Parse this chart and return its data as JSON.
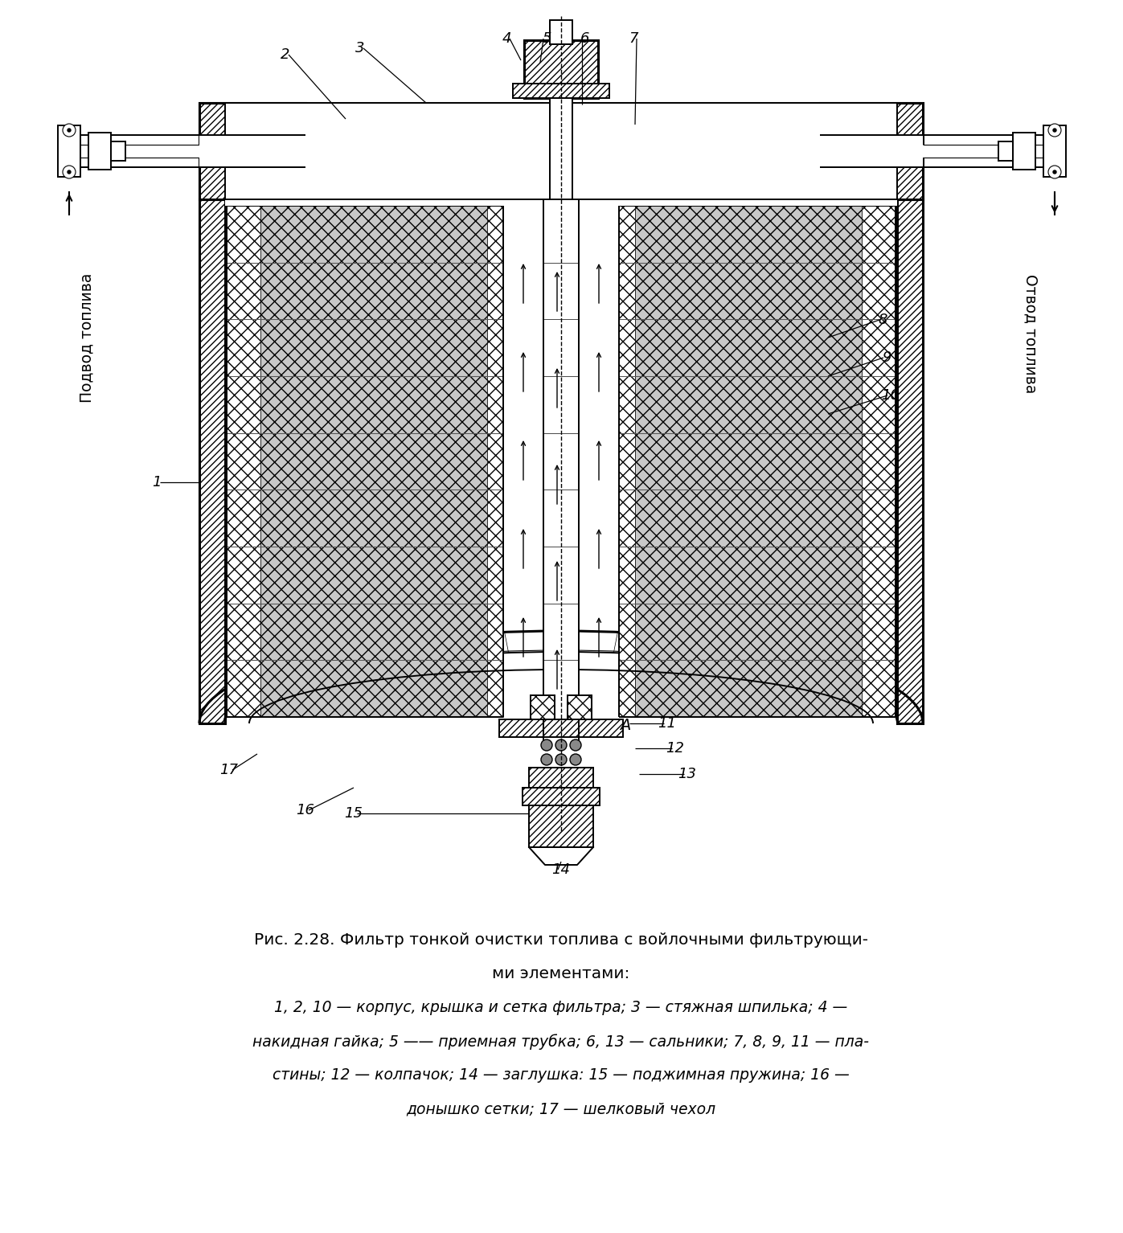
{
  "fig_width": 13.97,
  "fig_height": 15.34,
  "bg_color": "#ffffff",
  "caption_line1": "Рис. 2.28. Фильтр тонкой очистки топлива с войлочными фильтрующи-",
  "caption_line2": "ми элементами:",
  "caption_line3": "1, 2, 10 — корпус, крышка и сетка фильтра; 3 — стяжная шпилька; 4 —",
  "caption_line4": "накидная гайка; 5 —— приемная трубка; 6, 13 — сальники; 7, 8, 9, 11 — пла-",
  "caption_line5": "стины; 12 — колпачок; 14 — заглушка: 15 — поджимная пружина; 16 —",
  "caption_line6": "донышко сетки; 17 — шелковый чехол",
  "left_label": "Подвод топлива",
  "right_label": "Отвод топлива"
}
